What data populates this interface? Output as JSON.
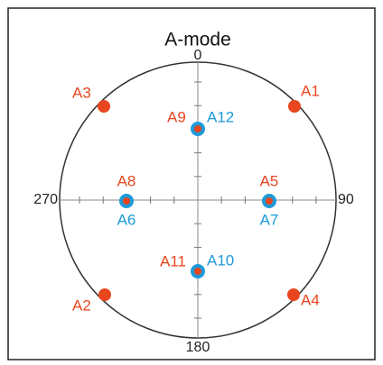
{
  "title": "A-mode",
  "axis_labels": {
    "top": "0",
    "right": "90",
    "bottom": "180",
    "left": "270"
  },
  "points": {
    "a1": "A1",
    "a2": "A2",
    "a3": "A3",
    "a4": "A4",
    "a5": "A5",
    "a6": "A6",
    "a7": "A7",
    "a8": "A8",
    "a9": "A9",
    "a10": "A10",
    "a11": "A11",
    "a12": "A12"
  }
}
